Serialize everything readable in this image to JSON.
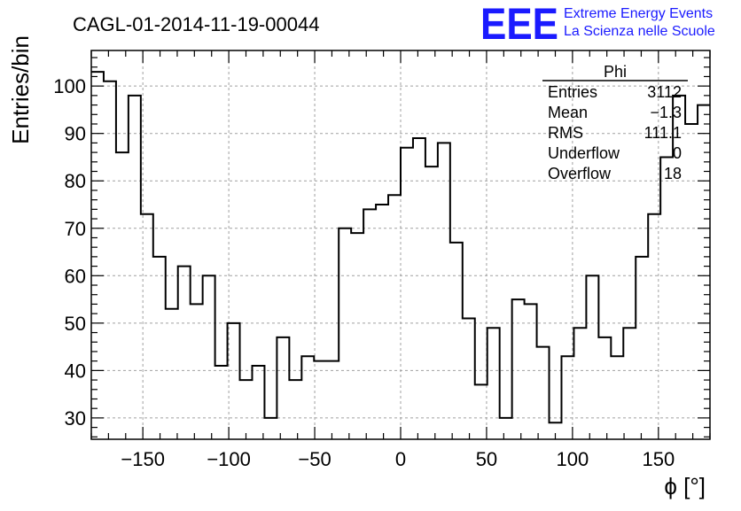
{
  "chart_data": {
    "type": "histogram",
    "title": "CAGL-01-2014-11-19-00044",
    "xlabel": "ϕ [°]",
    "ylabel": "Entries/bin",
    "xlim": [
      -180,
      180
    ],
    "ylim": [
      25.5,
      107.5
    ],
    "grid": true,
    "bin_width": 7.2,
    "x_ticks": [
      -150,
      -100,
      -50,
      0,
      50,
      100,
      150
    ],
    "y_ticks": [
      30,
      40,
      50,
      60,
      70,
      80,
      90,
      100
    ],
    "values": [
      103,
      101,
      86,
      98,
      73,
      64,
      53,
      62,
      54,
      60,
      41,
      50,
      38,
      41,
      30,
      47,
      38,
      43,
      42,
      42,
      70,
      69,
      74,
      75,
      77,
      87,
      89,
      83,
      88,
      67,
      51,
      37,
      49,
      30,
      55,
      54,
      45,
      29,
      43,
      49,
      60,
      47,
      43,
      49,
      64,
      73,
      85,
      98,
      92,
      96
    ],
    "stats": {
      "name": "Phi",
      "rows": [
        {
          "label": "Entries",
          "value": "3112"
        },
        {
          "label": "Mean",
          "value": "−1.3"
        },
        {
          "label": "RMS",
          "value": "111.1"
        },
        {
          "label": "Underflow",
          "value": "0"
        },
        {
          "label": "Overflow",
          "value": "18"
        }
      ]
    }
  },
  "logo": {
    "mark": "EEE",
    "line1": "Extreme Energy Events",
    "line2": "La Scienza nelle Scuole"
  }
}
